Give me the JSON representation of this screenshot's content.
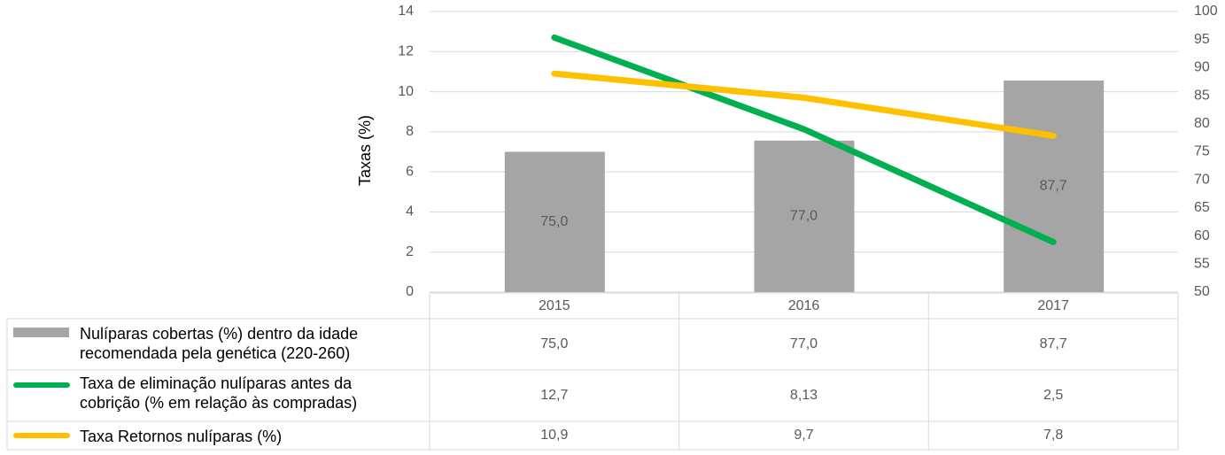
{
  "chart_data": {
    "type": "bar-line-table",
    "y_label": "Taxas (%)",
    "categories": [
      "2015",
      "2016",
      "2017"
    ],
    "ylim": [
      0,
      14
    ],
    "yticks": [
      0,
      2,
      4,
      6,
      8,
      10,
      12,
      14
    ],
    "y2lim": [
      50,
      100
    ],
    "y2ticks": [
      50,
      55,
      60,
      65,
      70,
      75,
      80,
      85,
      90,
      95,
      100
    ],
    "grid": true,
    "series": [
      {
        "name": "Nulíparas cobertas (%) dentro da idade recomendada pela genética (220-260)",
        "type": "bar",
        "axis": "y2",
        "color": "#a5a5a5",
        "values": [
          75.0,
          77.0,
          87.7
        ],
        "value_labels": [
          "75,0",
          "77,0",
          "87,7"
        ]
      },
      {
        "name": "Taxa de eliminação nulíparas antes da cobrição (% em relação às compradas)",
        "type": "line",
        "color": "#00b050",
        "values": [
          12.7,
          8.13,
          2.5
        ],
        "value_labels": [
          "12,7",
          "8,13",
          "2,5"
        ]
      },
      {
        "name": "Taxa Retornos nulíparas (%)",
        "type": "line",
        "color": "#ffc000",
        "values": [
          10.9,
          9.7,
          7.8
        ],
        "value_labels": [
          "10,9",
          "9,7",
          "7,8"
        ]
      }
    ]
  }
}
